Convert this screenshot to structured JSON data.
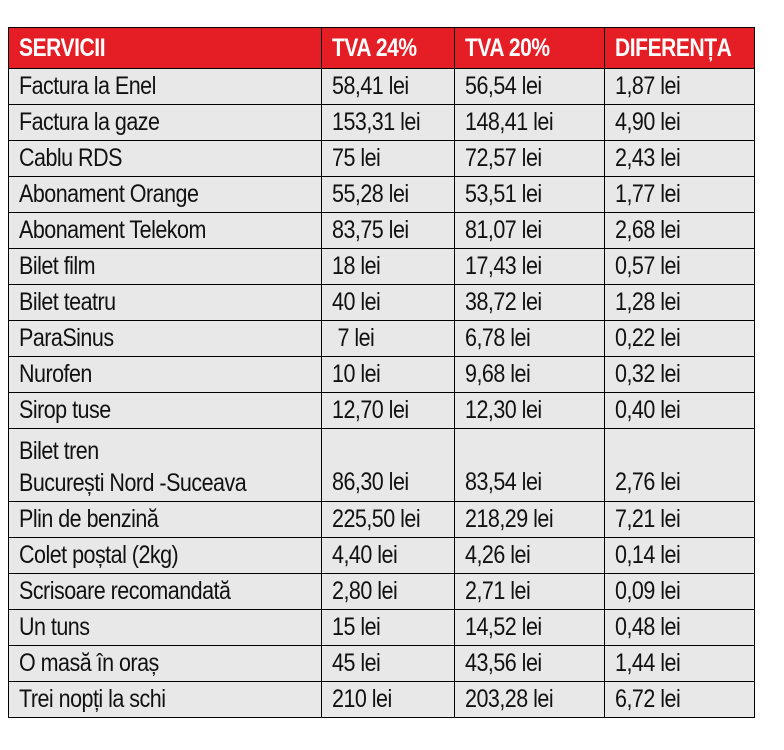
{
  "table": {
    "headers": [
      "SERVICII",
      "TVA 24%",
      "TVA 20%",
      "DIFERENȚA"
    ],
    "rows": [
      {
        "name": "Factura la Enel",
        "tva24": "58,41 lei",
        "tva20": "56,54 lei",
        "diff": "1,87 lei"
      },
      {
        "name": "Factura la gaze",
        "tva24": "153,31 lei",
        "tva20": "148,41 lei",
        "diff": "4,90 lei"
      },
      {
        "name": "Cablu RDS",
        "tva24": "75 lei",
        "tva20": "72,57 lei",
        "diff": "2,43 lei"
      },
      {
        "name": "Abonament Orange",
        "tva24": "55,28 lei",
        "tva20": "53,51 lei",
        "diff": "1,77 lei"
      },
      {
        "name": "Abonament Telekom",
        "tva24": "83,75 lei",
        "tva20": "81,07 lei",
        "diff": "2,68 lei"
      },
      {
        "name": "Bilet film",
        "tva24": "18 lei",
        "tva20": "17,43 lei",
        "diff": "0,57 lei"
      },
      {
        "name": "Bilet teatru",
        "tva24": "40 lei",
        "tva20": "38,72 lei",
        "diff": "1,28 lei"
      },
      {
        "name": "ParaSinus",
        "tva24": " 7 lei",
        "tva20": "6,78 lei",
        "diff": "0,22 lei"
      },
      {
        "name": "Nurofen",
        "tva24": "10 lei",
        "tva20": "9,68 lei",
        "diff": "0,32 lei"
      },
      {
        "name": "Sirop tuse",
        "tva24": "12,70 lei",
        "tva20": "12,30 lei",
        "diff": "0,40 lei"
      },
      {
        "name_line1": "Bilet tren",
        "name_line2": "București Nord -Suceava",
        "tva24": "86,30 lei",
        "tva20": "83,54 lei",
        "diff": "2,76 lei"
      },
      {
        "name": "Plin de benzină",
        "tva24": "225,50 lei",
        "tva20": "218,29 lei",
        "diff": "7,21 lei"
      },
      {
        "name": "Colet poștal (2kg)",
        "tva24": "4,40 lei",
        "tva20": "4,26 lei",
        "diff": "0,14 lei"
      },
      {
        "name": "Scrisoare recomandată",
        "tva24": "2,80 lei",
        "tva20": "2,71 lei",
        "diff": "0,09 lei"
      },
      {
        "name": "Un tuns",
        "tva24": "15 lei",
        "tva20": "14,52 lei",
        "diff": "0,48 lei"
      },
      {
        "name": "O masă în oraș",
        "tva24": "45 lei",
        "tva20": "43,56 lei",
        "diff": "1,44 lei"
      },
      {
        "name": "Trei nopți la schi",
        "tva24": "210 lei",
        "tva20": "203,28 lei",
        "diff": "6,72 lei"
      }
    ]
  },
  "colors": {
    "header_bg": "#e51e25",
    "header_text": "#ffffff",
    "cell_bg": "#e8e8e8",
    "border": "#000000"
  }
}
